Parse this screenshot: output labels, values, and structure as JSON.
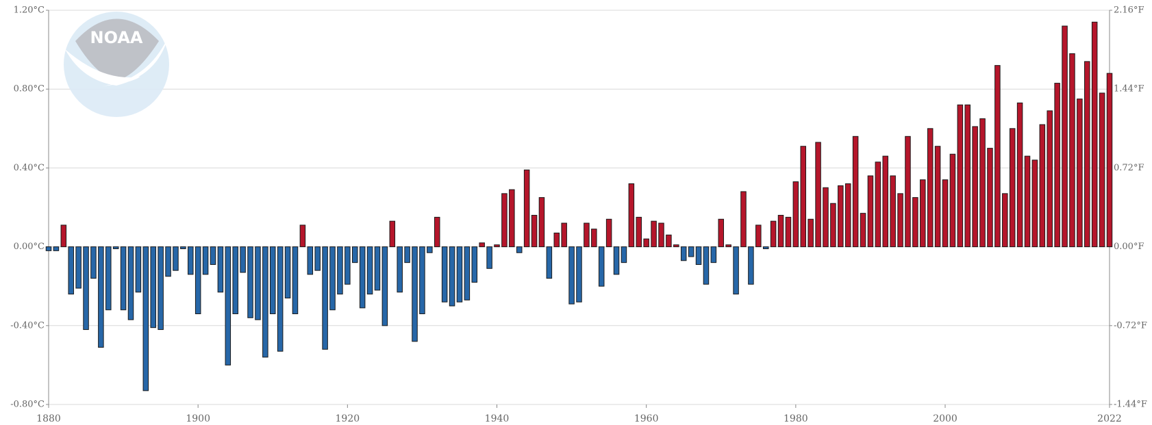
{
  "chart_data": {
    "type": "bar",
    "logo": "NOAA",
    "x": [
      1880,
      1881,
      1882,
      1883,
      1884,
      1885,
      1886,
      1887,
      1888,
      1889,
      1890,
      1891,
      1892,
      1893,
      1894,
      1895,
      1896,
      1897,
      1898,
      1899,
      1900,
      1901,
      1902,
      1903,
      1904,
      1905,
      1906,
      1907,
      1908,
      1909,
      1910,
      1911,
      1912,
      1913,
      1914,
      1915,
      1916,
      1917,
      1918,
      1919,
      1920,
      1921,
      1922,
      1923,
      1924,
      1925,
      1926,
      1927,
      1928,
      1929,
      1930,
      1931,
      1932,
      1933,
      1934,
      1935,
      1936,
      1937,
      1938,
      1939,
      1940,
      1941,
      1942,
      1943,
      1944,
      1945,
      1946,
      1947,
      1948,
      1949,
      1950,
      1951,
      1952,
      1953,
      1954,
      1955,
      1956,
      1957,
      1958,
      1959,
      1960,
      1961,
      1962,
      1963,
      1964,
      1965,
      1966,
      1967,
      1968,
      1969,
      1970,
      1971,
      1972,
      1973,
      1974,
      1975,
      1976,
      1977,
      1978,
      1979,
      1980,
      1981,
      1982,
      1983,
      1984,
      1985,
      1986,
      1987,
      1988,
      1989,
      1990,
      1991,
      1992,
      1993,
      1994,
      1995,
      1996,
      1997,
      1998,
      1999,
      2000,
      2001,
      2002,
      2003,
      2004,
      2005,
      2006,
      2007,
      2008,
      2009,
      2010,
      2011,
      2012,
      2013,
      2014,
      2015,
      2016,
      2017,
      2018,
      2019,
      2020,
      2021,
      2022
    ],
    "values": [
      -0.02,
      -0.02,
      0.11,
      -0.24,
      -0.21,
      -0.42,
      -0.16,
      -0.51,
      -0.32,
      -0.01,
      -0.32,
      -0.37,
      -0.23,
      -0.73,
      -0.41,
      -0.42,
      -0.15,
      -0.12,
      -0.01,
      -0.14,
      -0.34,
      -0.14,
      -0.09,
      -0.23,
      -0.6,
      -0.34,
      -0.13,
      -0.36,
      -0.37,
      -0.56,
      -0.34,
      -0.53,
      -0.26,
      -0.34,
      0.11,
      -0.14,
      -0.12,
      -0.52,
      -0.32,
      -0.24,
      -0.19,
      -0.08,
      -0.31,
      -0.24,
      -0.22,
      -0.4,
      0.13,
      -0.23,
      -0.08,
      -0.48,
      -0.34,
      -0.03,
      0.15,
      -0.28,
      -0.3,
      -0.28,
      -0.27,
      -0.18,
      0.02,
      -0.11,
      0.01,
      0.27,
      0.29,
      -0.03,
      0.39,
      0.16,
      0.25,
      -0.16,
      0.07,
      0.12,
      -0.29,
      -0.28,
      0.12,
      0.09,
      -0.2,
      0.14,
      -0.14,
      -0.08,
      0.32,
      0.15,
      0.04,
      0.13,
      0.12,
      0.06,
      0.01,
      -0.07,
      -0.05,
      -0.09,
      -0.19,
      -0.08,
      0.14,
      0.01,
      -0.24,
      0.28,
      -0.19,
      0.11,
      -0.01,
      0.13,
      0.16,
      0.15,
      0.33,
      0.51,
      0.14,
      0.53,
      0.3,
      0.22,
      0.31,
      0.32,
      0.56,
      0.17,
      0.36,
      0.43,
      0.46,
      0.36,
      0.27,
      0.56,
      0.25,
      0.34,
      0.6,
      0.51,
      0.34,
      0.47,
      0.72,
      0.72,
      0.61,
      0.65,
      0.5,
      0.92,
      0.27,
      0.6,
      0.73,
      0.46,
      0.44,
      0.62,
      0.69,
      0.83,
      1.12,
      0.98,
      0.75,
      0.94,
      1.14,
      0.78,
      0.88
    ],
    "positive_color": "#b5162b",
    "negative_color": "#2767a8",
    "xlim": [
      1880,
      2022
    ],
    "xticks": [
      1880,
      1900,
      1920,
      1940,
      1960,
      1980,
      2000,
      2022
    ],
    "ylim": [
      -0.8,
      1.2
    ],
    "yticks": [
      {
        "value": -0.8,
        "label": "-0.80°C"
      },
      {
        "value": -0.4,
        "label": "-0.40°C"
      },
      {
        "value": 0,
        "label": "0.00°C"
      },
      {
        "value": 0.4,
        "label": "0.40°C"
      },
      {
        "value": 0.8,
        "label": "0.80°C"
      },
      {
        "value": 1.2,
        "label": "1.20°C"
      }
    ],
    "y2lim": [
      -1.44,
      2.16
    ],
    "y2ticks": [
      {
        "value": -1.44,
        "label": "-1.44°F"
      },
      {
        "value": -0.72,
        "label": "-0.72°F"
      },
      {
        "value": 0,
        "label": "0.00°F"
      },
      {
        "value": 0.72,
        "label": "0.72°F"
      },
      {
        "value": 1.44,
        "label": "1.44°F"
      },
      {
        "value": 2.16,
        "label": "2.16°F"
      }
    ],
    "grid": true
  }
}
